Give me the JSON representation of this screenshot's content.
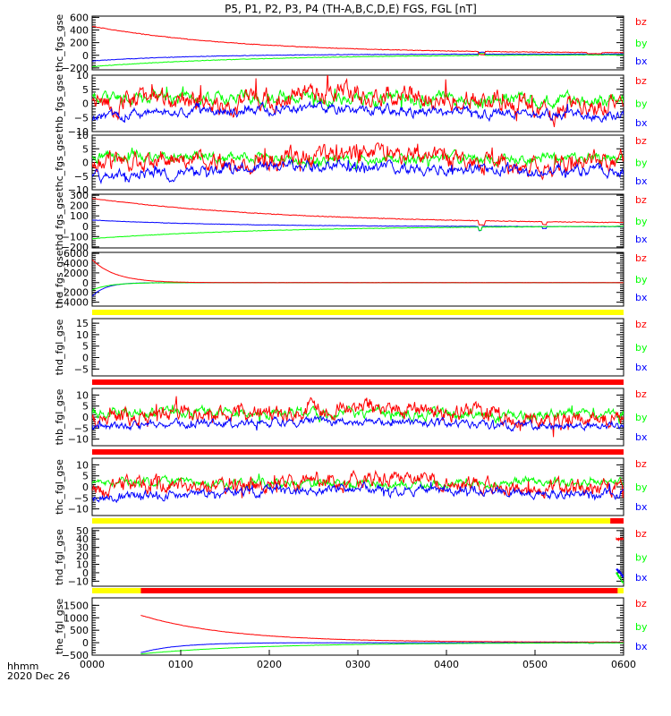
{
  "title": "P5, P1, P2, P3, P4 (TH-A,B,C,D,E) FGS, FGL [nT]",
  "time_axis": {
    "label": "hhmm",
    "date": "2020 Dec 26",
    "ticks": [
      "0000",
      "0100",
      "0200",
      "0300",
      "0400",
      "0500",
      "0600"
    ],
    "range_min": [
      0,
      360
    ]
  },
  "colors": {
    "bx": "#0000ff",
    "by": "#00ff00",
    "bz": "#ff0000",
    "bar_yellow": "#ffff00",
    "bar_red": "#ff0000"
  },
  "chart_data": [
    {
      "type": "line",
      "ylabel": "thc_fgs_gse",
      "ylim": [
        -230,
        620
      ],
      "yticks": [
        600,
        400,
        200,
        0,
        -200
      ],
      "ytick_labels": [
        "600",
        "400",
        "200",
        "0",
        "−200"
      ],
      "legend": [
        "bz",
        "by",
        "bx"
      ],
      "series": [
        {
          "name": "bx",
          "kind": "settle",
          "start_min": 0,
          "end_min": 360,
          "v0": -90,
          "vend": 20,
          "tau": 70,
          "noise": 4,
          "seed": 11,
          "spikes": [
            [
              262,
              266,
              30
            ]
          ]
        },
        {
          "name": "by",
          "kind": "settle",
          "start_min": 0,
          "end_min": 360,
          "v0": -180,
          "vend": 15,
          "tau": 110,
          "noise": 4,
          "seed": 12,
          "spikes": [
            [
              262,
              266,
              30
            ]
          ]
        },
        {
          "name": "bz",
          "kind": "settle",
          "start_min": 0,
          "end_min": 360,
          "v0": 460,
          "vend": 30,
          "tau": 100,
          "noise": 5,
          "seed": 13,
          "spikes": [
            [
              262,
              266,
              -50
            ],
            [
              335,
              345,
              -20
            ]
          ]
        }
      ]
    },
    {
      "type": "line",
      "ylabel": "thb_fgs_gse",
      "ylim": [
        -10,
        10
      ],
      "yticks": [
        10,
        5,
        0,
        -5,
        -10
      ],
      "ytick_labels": [
        "10",
        "5",
        "0",
        "−5",
        "−10"
      ],
      "legend": [
        "bz",
        "by",
        "bx"
      ],
      "series": [
        {
          "name": "by",
          "kind": "noisy",
          "base": [
            [
              0,
              1.5
            ],
            [
              60,
              2.5
            ],
            [
              150,
              2
            ],
            [
              300,
              1
            ],
            [
              360,
              1.5
            ]
          ],
          "noise": 1.6,
          "seed": 21
        },
        {
          "name": "bz",
          "kind": "noisy",
          "base": [
            [
              0,
              -1
            ],
            [
              50,
              1
            ],
            [
              100,
              0
            ],
            [
              150,
              3
            ],
            [
              210,
              4
            ],
            [
              260,
              1
            ],
            [
              300,
              -2
            ],
            [
              360,
              -1
            ]
          ],
          "noise": 2.6,
          "seed": 22
        },
        {
          "name": "bx",
          "kind": "noisy",
          "base": [
            [
              0,
              -5
            ],
            [
              60,
              -3
            ],
            [
              150,
              -2
            ],
            [
              240,
              -3
            ],
            [
              300,
              -4
            ],
            [
              360,
              -4
            ]
          ],
          "noise": 1.2,
          "seed": 23
        }
      ]
    },
    {
      "type": "line",
      "ylabel": "thc_fgs_gse",
      "ylim": [
        -10,
        10
      ],
      "yticks": [
        10,
        5,
        0,
        -5,
        -10
      ],
      "ytick_labels": [
        "10",
        "5",
        "0",
        "−5",
        "−10"
      ],
      "legend": [
        "bz",
        "by",
        "bx"
      ],
      "series": [
        {
          "name": "by",
          "kind": "noisy",
          "base": [
            [
              0,
              2
            ],
            [
              100,
              2
            ],
            [
              150,
              1
            ],
            [
              220,
              1.5
            ],
            [
              300,
              2
            ],
            [
              360,
              1.5
            ]
          ],
          "noise": 1.3,
          "seed": 31
        },
        {
          "name": "bz",
          "kind": "noisy",
          "base": [
            [
              0,
              -1
            ],
            [
              50,
              1
            ],
            [
              100,
              0
            ],
            [
              160,
              3
            ],
            [
              220,
              3.5
            ],
            [
              270,
              0
            ],
            [
              300,
              -1
            ],
            [
              360,
              0.5
            ]
          ],
          "noise": 2.4,
          "seed": 32
        },
        {
          "name": "bx",
          "kind": "noisy",
          "base": [
            [
              0,
              -5
            ],
            [
              80,
              -3
            ],
            [
              150,
              -1
            ],
            [
              230,
              -2
            ],
            [
              300,
              -3
            ],
            [
              360,
              -3
            ]
          ],
          "noise": 1.4,
          "seed": 33
        }
      ]
    },
    {
      "type": "line",
      "ylabel": "thd_fgs_gse",
      "ylim": [
        -210,
        310
      ],
      "yticks": [
        300,
        200,
        100,
        0,
        -100,
        -200
      ],
      "ytick_labels": [
        "300",
        "200",
        "100",
        "0",
        "−100",
        "−200"
      ],
      "legend": [
        "bz",
        "by",
        "bx"
      ],
      "series": [
        {
          "name": "bx",
          "kind": "settle",
          "start_min": 0,
          "end_min": 360,
          "v0": 60,
          "vend": -5,
          "tau": 90,
          "noise": 2,
          "seed": 41,
          "spikes": [
            [
              262,
              264,
              -40
            ],
            [
              305,
              308,
              -20
            ]
          ]
        },
        {
          "name": "by",
          "kind": "settle",
          "start_min": 0,
          "end_min": 360,
          "v0": -120,
          "vend": 5,
          "tau": 120,
          "noise": 2,
          "seed": 42,
          "spikes": [
            [
              262,
              264,
              -30
            ]
          ]
        },
        {
          "name": "bz",
          "kind": "settle",
          "start_min": 0,
          "end_min": 360,
          "v0": 270,
          "vend": 20,
          "tau": 130,
          "noise": 3,
          "seed": 43,
          "spikes": [
            [
              262,
              266,
              -40
            ],
            [
              305,
              308,
              -30
            ]
          ]
        }
      ]
    },
    {
      "type": "line",
      "ylabel": "the_fgs_gse",
      "ylim": [
        -4800,
        6200
      ],
      "yticks": [
        6000,
        4000,
        2000,
        0,
        -2000,
        -4000
      ],
      "ytick_labels": [
        "6000",
        "4000",
        "2000",
        "0",
        "−2000",
        "−4000"
      ],
      "legend": [
        "bz",
        "by",
        "bx"
      ],
      "series": [
        {
          "name": "bx",
          "kind": "settle",
          "start_min": 0,
          "end_min": 360,
          "v0": -2800,
          "vend": 0,
          "tau": 9,
          "noise": 20,
          "seed": 51,
          "spikes": []
        },
        {
          "name": "by",
          "kind": "settle",
          "start_min": 0,
          "end_min": 360,
          "v0": -1500,
          "vend": 0,
          "tau": 12,
          "noise": 20,
          "seed": 52,
          "spikes": []
        },
        {
          "name": "bz",
          "kind": "settle",
          "start_min": 0,
          "end_min": 360,
          "v0": 4700,
          "vend": 0,
          "tau": 16,
          "noise": 20,
          "seed": 53,
          "spikes": []
        }
      ]
    },
    {
      "type": "line",
      "ylabel": "thd_fgl_gse",
      "ylim": [
        -8,
        17
      ],
      "yticks": [
        15,
        10,
        5,
        0,
        -5
      ],
      "ytick_labels": [
        "15",
        "10",
        "5",
        "0",
        "−5"
      ],
      "legend": [
        "bz",
        "by",
        "bx"
      ],
      "series": []
    },
    {
      "type": "line",
      "ylabel": "thb_fgl_gse",
      "ylim": [
        -13,
        13
      ],
      "yticks": [
        10,
        5,
        0,
        -5,
        -10
      ],
      "ytick_labels": [
        "10",
        "5",
        "0",
        "−5",
        "−10"
      ],
      "legend": [
        "bz",
        "by",
        "bx"
      ],
      "series": [
        {
          "name": "by",
          "kind": "noisy",
          "base": [
            [
              0,
              1.5
            ],
            [
              60,
              2.5
            ],
            [
              150,
              2
            ],
            [
              300,
              1
            ],
            [
              360,
              1.5
            ]
          ],
          "noise": 1.6,
          "seed": 71
        },
        {
          "name": "bz",
          "kind": "noisy",
          "base": [
            [
              0,
              -1
            ],
            [
              50,
              1
            ],
            [
              100,
              0
            ],
            [
              150,
              3
            ],
            [
              210,
              4
            ],
            [
              260,
              1
            ],
            [
              300,
              -2
            ],
            [
              360,
              -1
            ]
          ],
          "noise": 2.6,
          "seed": 72
        },
        {
          "name": "bx",
          "kind": "noisy",
          "base": [
            [
              0,
              -5
            ],
            [
              60,
              -3
            ],
            [
              150,
              -2
            ],
            [
              240,
              -3
            ],
            [
              300,
              -4
            ],
            [
              360,
              -4
            ]
          ],
          "noise": 1.2,
          "seed": 73
        }
      ]
    },
    {
      "type": "line",
      "ylabel": "thc_fgl_gse",
      "ylim": [
        -13,
        13
      ],
      "yticks": [
        10,
        5,
        0,
        -5,
        -10
      ],
      "ytick_labels": [
        "10",
        "5",
        "0",
        "−5",
        "−10"
      ],
      "legend": [
        "bz",
        "by",
        "bx"
      ],
      "series": [
        {
          "name": "by",
          "kind": "noisy",
          "base": [
            [
              0,
              2
            ],
            [
              100,
              2
            ],
            [
              150,
              1
            ],
            [
              220,
              1.5
            ],
            [
              300,
              2
            ],
            [
              360,
              1.5
            ]
          ],
          "noise": 1.3,
          "seed": 81
        },
        {
          "name": "bz",
          "kind": "noisy",
          "base": [
            [
              0,
              -1
            ],
            [
              50,
              1
            ],
            [
              100,
              0
            ],
            [
              160,
              3
            ],
            [
              220,
              3.5
            ],
            [
              270,
              0
            ],
            [
              300,
              -1
            ],
            [
              360,
              0.5
            ]
          ],
          "noise": 2.4,
          "seed": 82
        },
        {
          "name": "bx",
          "kind": "noisy",
          "base": [
            [
              0,
              -5
            ],
            [
              80,
              -3
            ],
            [
              150,
              -1
            ],
            [
              230,
              -2
            ],
            [
              300,
              -3
            ],
            [
              360,
              -3
            ]
          ],
          "noise": 1.4,
          "seed": 83
        }
      ]
    },
    {
      "type": "line",
      "ylabel": "thd_fgl_gse",
      "ylim": [
        -16,
        53
      ],
      "yticks": [
        50,
        40,
        30,
        20,
        10,
        0,
        -10
      ],
      "ytick_labels": [
        "50",
        "40",
        "30",
        "20",
        "10",
        "0",
        "−10"
      ],
      "legend": [
        "bz",
        "by",
        "bx"
      ],
      "series": [
        {
          "name": "bz",
          "kind": "window",
          "start_min": 355,
          "end_min": 360,
          "from": 40,
          "to": 40,
          "noise": 1,
          "seed": 91
        },
        {
          "name": "bx",
          "kind": "window",
          "start_min": 355,
          "end_min": 360,
          "from": 5,
          "to": -5,
          "noise": 2,
          "seed": 92
        },
        {
          "name": "by",
          "kind": "window",
          "start_min": 355,
          "end_min": 360,
          "from": 0,
          "to": -12,
          "noise": 2,
          "seed": 93
        }
      ]
    },
    {
      "type": "line",
      "ylabel": "the_fgl_gse",
      "ylim": [
        -500,
        1800
      ],
      "yticks": [
        1500,
        1000,
        500,
        0,
        -500
      ],
      "ytick_labels": [
        "1500",
        "1000",
        "500",
        "0",
        "−500"
      ],
      "legend": [
        "bz",
        "by",
        "bx"
      ],
      "series": [
        {
          "name": "bz",
          "kind": "settle",
          "start_min": 33,
          "end_min": 360,
          "v0": 1100,
          "vend": 20,
          "tau": 60,
          "noise": 6,
          "seed": 101,
          "spikes": []
        },
        {
          "name": "bx",
          "kind": "settle",
          "start_min": 33,
          "end_min": 360,
          "v0": -400,
          "vend": 0,
          "tau": 25,
          "noise": 4,
          "seed": 102,
          "spikes": [
            [
              336,
              340,
              -20
            ]
          ]
        },
        {
          "name": "by",
          "kind": "settle",
          "start_min": 33,
          "end_min": 360,
          "v0": -450,
          "vend": 0,
          "tau": 80,
          "noise": 4,
          "seed": 103,
          "spikes": [
            [
              336,
              340,
              -15
            ]
          ]
        }
      ]
    }
  ],
  "status_bars": [
    {
      "after_panel": 4,
      "segments": [
        {
          "color": "yellow",
          "from_min": 0,
          "to_min": 360
        }
      ]
    },
    {
      "after_panel": 5,
      "segments": [
        {
          "color": "red",
          "from_min": 0,
          "to_min": 360
        }
      ]
    },
    {
      "after_panel": 6,
      "segments": [
        {
          "color": "red",
          "from_min": 0,
          "to_min": 360
        }
      ]
    },
    {
      "after_panel": 7,
      "segments": [
        {
          "color": "yellow",
          "from_min": 0,
          "to_min": 351
        },
        {
          "color": "red",
          "from_min": 351,
          "to_min": 360
        }
      ]
    },
    {
      "after_panel": 8,
      "segments": [
        {
          "color": "yellow",
          "from_min": 0,
          "to_min": 33
        },
        {
          "color": "red",
          "from_min": 33,
          "to_min": 356
        },
        {
          "color": "yellow",
          "from_min": 356,
          "to_min": 360
        }
      ]
    }
  ]
}
